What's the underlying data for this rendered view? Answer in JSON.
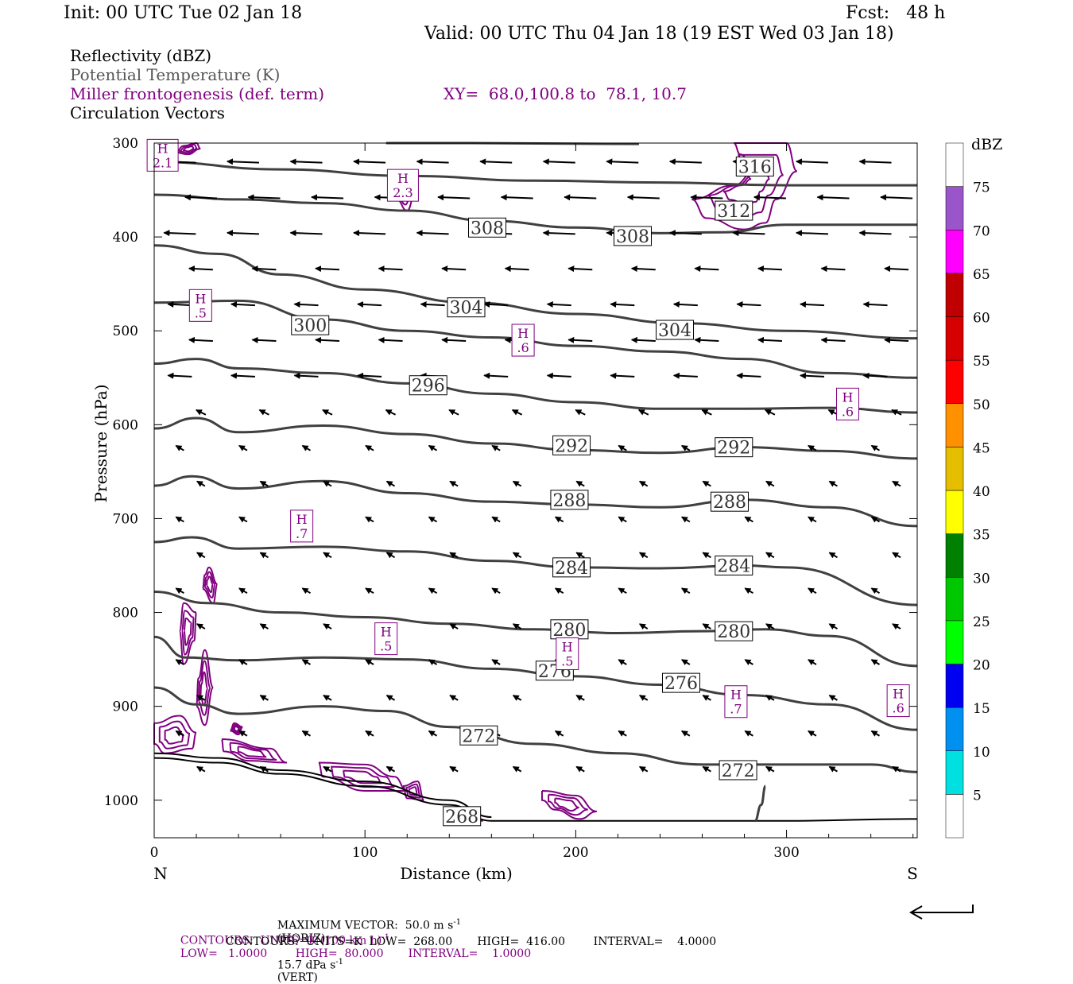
{
  "header": {
    "init": "Init: 00 UTC Tue 02 Jan 18",
    "fcst": "Fcst:   48 h",
    "valid": "Valid: 00 UTC Thu 04 Jan 18 (19 EST Wed 03 Jan 18)",
    "field1": "Reflectivity (dBZ)",
    "field2": "Potential Temperature (K)",
    "field3": "Miller frontogenesis (def. term)",
    "xy": "XY=  68.0,100.8 to  78.1, 10.7",
    "field4": "Circulation Vectors"
  },
  "colors": {
    "theta": "#404040",
    "fronto": "#800080",
    "vector": "#000000"
  },
  "chart_data": {
    "type": "line",
    "xlabel": "Distance (km)",
    "ylabel": "Pressure (hPa)",
    "xlim": [
      0,
      362
    ],
    "ylim": [
      1040,
      300
    ],
    "x_ticks": [
      0,
      100,
      200,
      300
    ],
    "y_ticks": [
      300,
      400,
      500,
      600,
      700,
      800,
      900,
      1000
    ],
    "x_end_labels": [
      "N",
      "S"
    ],
    "theta_contours": [
      {
        "label": "308",
        "label_at": [
          [
            158,
            390
          ],
          [
            227,
            399
          ]
        ],
        "points": [
          [
            0,
            355
          ],
          [
            40,
            360
          ],
          [
            80,
            364
          ],
          [
            120,
            372
          ],
          [
            160,
            383
          ],
          [
            200,
            390
          ],
          [
            240,
            396
          ],
          [
            270,
            395
          ],
          [
            300,
            387
          ],
          [
            362,
            387
          ]
        ]
      },
      {
        "label": "304",
        "label_at": [
          [
            148,
            475
          ],
          [
            247,
            499
          ]
        ],
        "points": [
          [
            0,
            409
          ],
          [
            30,
            418
          ],
          [
            60,
            440
          ],
          [
            100,
            456
          ],
          [
            150,
            470
          ],
          [
            200,
            482
          ],
          [
            250,
            492
          ],
          [
            300,
            500
          ],
          [
            362,
            508
          ]
        ]
      },
      {
        "label": "300",
        "label_at": [
          [
            74,
            494
          ]
        ],
        "points": [
          [
            0,
            470
          ],
          [
            40,
            468
          ],
          [
            80,
            488
          ],
          [
            120,
            500
          ],
          [
            160,
            507
          ],
          [
            200,
            516
          ],
          [
            240,
            522
          ],
          [
            280,
            530
          ],
          [
            320,
            545
          ],
          [
            362,
            550
          ]
        ]
      },
      {
        "label": "296",
        "label_at": [
          [
            130,
            558
          ]
        ],
        "points": [
          [
            0,
            535
          ],
          [
            20,
            530
          ],
          [
            40,
            540
          ],
          [
            80,
            545
          ],
          [
            120,
            556
          ],
          [
            160,
            567
          ],
          [
            200,
            576
          ],
          [
            240,
            583
          ],
          [
            280,
            583
          ],
          [
            320,
            582
          ],
          [
            362,
            587
          ]
        ]
      },
      {
        "label": "292",
        "label_at": [
          [
            198,
            622
          ],
          [
            275,
            624
          ]
        ],
        "points": [
          [
            0,
            604
          ],
          [
            20,
            593
          ],
          [
            40,
            608
          ],
          [
            80,
            601
          ],
          [
            120,
            610
          ],
          [
            160,
            620
          ],
          [
            200,
            627
          ],
          [
            240,
            630
          ],
          [
            280,
            624
          ],
          [
            320,
            628
          ],
          [
            362,
            636
          ]
        ]
      },
      {
        "label": "288",
        "label_at": [
          [
            197,
            680
          ],
          [
            273,
            682
          ]
        ],
        "points": [
          [
            0,
            665
          ],
          [
            18,
            655
          ],
          [
            40,
            668
          ],
          [
            80,
            660
          ],
          [
            120,
            673
          ],
          [
            160,
            682
          ],
          [
            200,
            685
          ],
          [
            240,
            688
          ],
          [
            280,
            680
          ],
          [
            320,
            688
          ],
          [
            362,
            708
          ]
        ]
      },
      {
        "label": "284",
        "label_at": [
          [
            198,
            752
          ],
          [
            275,
            750
          ]
        ],
        "points": [
          [
            0,
            725
          ],
          [
            18,
            720
          ],
          [
            40,
            732
          ],
          [
            80,
            730
          ],
          [
            120,
            735
          ],
          [
            160,
            745
          ],
          [
            200,
            752
          ],
          [
            240,
            753
          ],
          [
            280,
            750
          ],
          [
            300,
            752
          ],
          [
            362,
            792
          ]
        ]
      },
      {
        "label": "280",
        "label_at": [
          [
            197,
            818
          ],
          [
            275,
            820
          ]
        ],
        "points": [
          [
            0,
            778
          ],
          [
            25,
            790
          ],
          [
            60,
            800
          ],
          [
            100,
            805
          ],
          [
            140,
            812
          ],
          [
            180,
            818
          ],
          [
            220,
            822
          ],
          [
            260,
            820
          ],
          [
            290,
            818
          ],
          [
            320,
            825
          ],
          [
            362,
            857
          ]
        ]
      },
      {
        "label": "276",
        "label_at": [
          [
            190,
            862
          ],
          [
            250,
            875
          ]
        ],
        "points": [
          [
            0,
            826
          ],
          [
            15,
            848
          ],
          [
            40,
            851
          ],
          [
            80,
            848
          ],
          [
            120,
            850
          ],
          [
            160,
            860
          ],
          [
            200,
            868
          ],
          [
            240,
            877
          ],
          [
            280,
            888
          ],
          [
            320,
            898
          ],
          [
            362,
            925
          ]
        ]
      },
      {
        "label": "272",
        "label_at": [
          [
            154,
            931
          ],
          [
            277,
            968
          ]
        ],
        "points": [
          [
            0,
            880
          ],
          [
            20,
            898
          ],
          [
            40,
            908
          ],
          [
            80,
            900
          ],
          [
            110,
            905
          ],
          [
            140,
            922
          ],
          [
            180,
            940
          ],
          [
            220,
            950
          ],
          [
            260,
            962
          ],
          [
            300,
            962
          ],
          [
            340,
            962
          ],
          [
            362,
            970
          ]
        ]
      }
    ],
    "ground_label": {
      "label": "268",
      "label_at": [
        [
          146,
          1017
        ]
      ]
    },
    "fronto_highs": [
      {
        "label": "H",
        "value": "2.1",
        "at": [
          4,
          313
        ]
      },
      {
        "label": "H",
        "value": "2.3",
        "at": [
          118,
          345
        ]
      },
      {
        "label": "H",
        "value": ".5",
        "at": [
          22,
          473
        ]
      },
      {
        "label": "H",
        "value": ".6",
        "at": [
          175,
          510
        ]
      },
      {
        "label": "H",
        "value": ".6",
        "at": [
          329,
          578
        ]
      },
      {
        "label": "H",
        "value": ".7",
        "at": [
          70,
          708
        ]
      },
      {
        "label": "H",
        "value": ".5",
        "at": [
          110,
          828
        ]
      },
      {
        "label": "H",
        "value": ".5",
        "at": [
          196,
          844
        ]
      },
      {
        "label": "H",
        "value": ".7",
        "at": [
          276,
          895
        ]
      },
      {
        "label": "H",
        "value": ".6",
        "at": [
          353,
          894
        ]
      }
    ],
    "colorbar": {
      "title": "dBZ",
      "levels": [
        5,
        10,
        15,
        20,
        25,
        30,
        35,
        40,
        45,
        50,
        55,
        60,
        65,
        70,
        75
      ],
      "colors": [
        "#ffffff",
        "#00e0e0",
        "#0090f0",
        "#0000f0",
        "#00ff00",
        "#00c800",
        "#008000",
        "#ffff00",
        "#e6be00",
        "#ff9000",
        "#ff0000",
        "#d60000",
        "#c00000",
        "#ff00ff",
        "#9955c9",
        "#ffffff"
      ]
    },
    "vectors_note": "horizontal circulation vectors, mostly pointing left (north)"
  },
  "footer": {
    "max_vector": "MAXIMUM VECTOR:  50.0 m s",
    "max_vector_sup": "-1",
    "horiz": "(HORIZ)",
    "vert_val": "15.7 dPa s",
    "vert_sup": "-1",
    "vert": "(VERT)",
    "contours1": "CONTOURS:  UNITS=K (100 km h)",
    "contours1_sup": "-1",
    "contours1_rest": "LOW=   1.0000        HIGH=  80.000       INTERVAL=    1.0000",
    "contours2": "CONTOURS:  UNITS=K  LOW=  268.00       HIGH=  416.00        INTERVAL=    4.0000"
  }
}
